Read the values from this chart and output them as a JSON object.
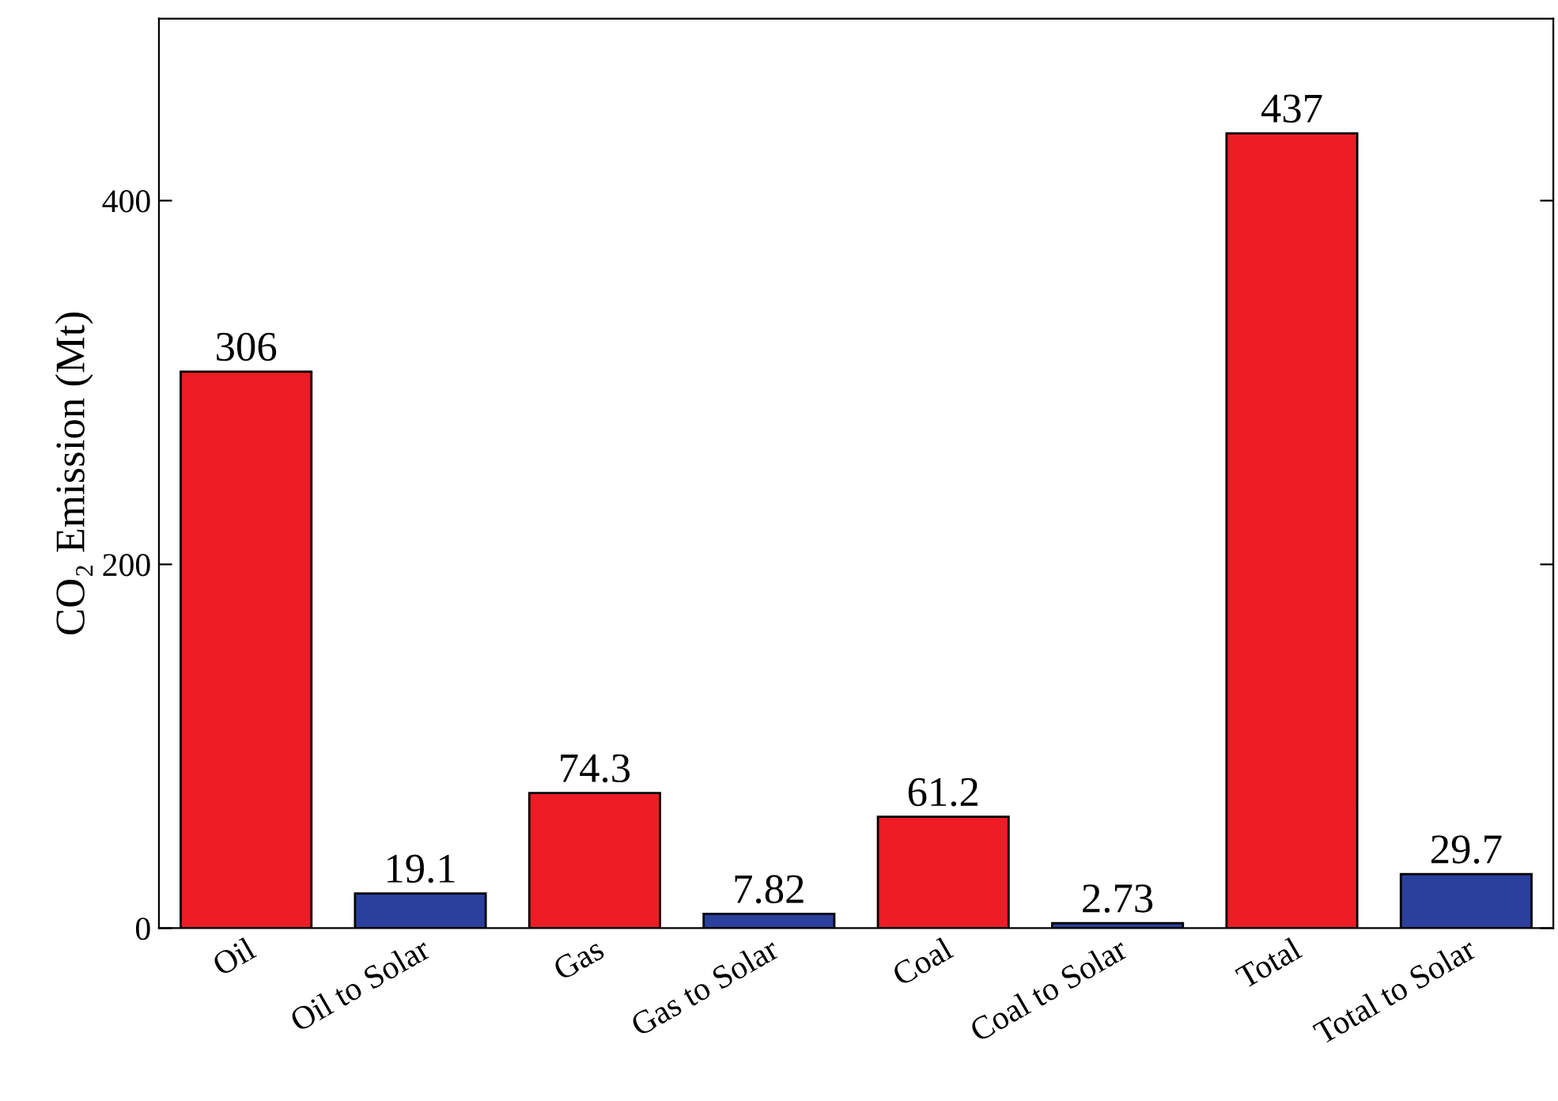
{
  "chart_data": {
    "type": "bar",
    "ylabel": "CO₂ Emission (Mt)",
    "categories": [
      "Oil",
      "Oil to Solar",
      "Gas",
      "Gas to Solar",
      "Coal",
      "Coal to Solar",
      "Total",
      "Total to Solar"
    ],
    "values": [
      306,
      19.1,
      74.3,
      7.82,
      61.2,
      2.73,
      437,
      29.7
    ],
    "colors": [
      "#ee1c24",
      "#2b3f9c",
      "#ee1c24",
      "#2b3f9c",
      "#ee1c24",
      "#2b3f9c",
      "#ee1c24",
      "#2b3f9c"
    ],
    "ylim": [
      0,
      500
    ],
    "yticks": [
      0,
      200,
      400
    ],
    "data_labels": true,
    "grid": false,
    "legend": false
  }
}
